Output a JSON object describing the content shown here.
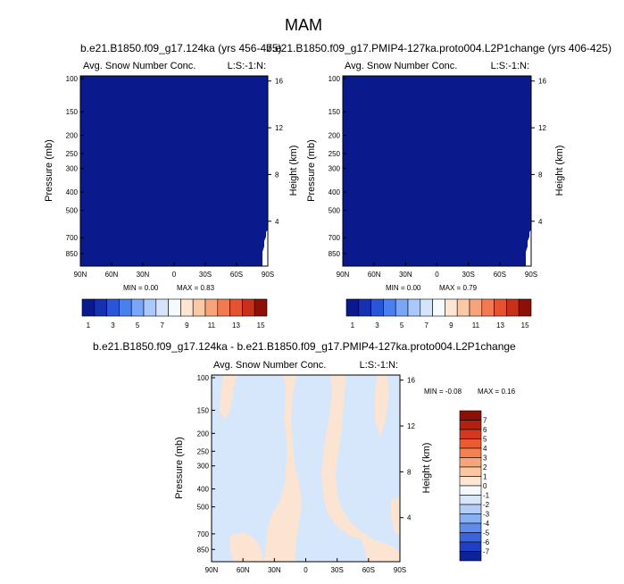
{
  "main_title": "MAM",
  "colors": {
    "deep_blue": "#0a1a8c",
    "light_blue": "#d6e6fb",
    "light_peach": "#fbe4d2"
  },
  "chart_data": [
    {
      "type": "heatmap",
      "title": "b.e21.B1850.f09_g17.124ka (yrs 456-475)",
      "left_label": "Avg. Snow Number Conc.",
      "right_label": "L:S:-1:N:",
      "xlabel": "",
      "ylabel": "Pressure (mb)",
      "ylabel_right": "Height (km)",
      "x_ticks": [
        "90N",
        "60N",
        "30N",
        "0",
        "30S",
        "60S",
        "90S"
      ],
      "y_ticks": [
        "100",
        "150",
        "200",
        "250",
        "300",
        "400",
        "500",
        "700",
        "850"
      ],
      "height_ticks": [
        "16",
        "12",
        "8",
        "4"
      ],
      "min_label": "MIN =  0.00",
      "max_label": "MAX =  0.83",
      "min": 0.0,
      "max": 0.83,
      "colorbar_labels": [
        "1",
        "3",
        "5",
        "7",
        "9",
        "11",
        "13",
        "15"
      ]
    },
    {
      "type": "heatmap",
      "title": "b.e21.B1850.f09_g17.PMIP4-127ka.proto004.L2P1change (yrs 406-425)",
      "left_label": "Avg. Snow Number Conc.",
      "right_label": "L:S:-1:N:",
      "xlabel": "",
      "ylabel": "Pressure (mb)",
      "ylabel_right": "Height (km)",
      "x_ticks": [
        "90N",
        "60N",
        "30N",
        "0",
        "30S",
        "60S",
        "90S"
      ],
      "y_ticks": [
        "100",
        "150",
        "200",
        "250",
        "300",
        "400",
        "500",
        "700",
        "850"
      ],
      "height_ticks": [
        "16",
        "12",
        "8",
        "4"
      ],
      "min_label": "MIN =  0.00",
      "max_label": "MAX =  0.79",
      "min": 0.0,
      "max": 0.79,
      "colorbar_labels": [
        "1",
        "3",
        "5",
        "7",
        "9",
        "11",
        "13",
        "15"
      ]
    },
    {
      "type": "heatmap",
      "title": "b.e21.B1850.f09_g17.124ka - b.e21.B1850.f09_g17.PMIP4-127ka.proto004.L2P1change",
      "left_label": "Avg. Snow Number Conc.",
      "right_label": "L:S:-1:N:",
      "xlabel": "",
      "ylabel": "Pressure (mb)",
      "ylabel_right": "Height (km)",
      "x_ticks": [
        "90N",
        "60N",
        "30N",
        "0",
        "30S",
        "60S",
        "90S"
      ],
      "y_ticks": [
        "100",
        "150",
        "200",
        "250",
        "300",
        "400",
        "500",
        "700",
        "850"
      ],
      "height_ticks": [
        "16",
        "12",
        "8",
        "4"
      ],
      "min_label": "MIN = -0.08",
      "max_label": "MAX =  0.16",
      "min": -0.08,
      "max": 0.16,
      "colorbar_labels": [
        "7",
        "6",
        "5",
        "4",
        "3",
        "2",
        "1",
        "0",
        "-1",
        "-2",
        "-3",
        "-4",
        "-5",
        "-6",
        "-7"
      ]
    }
  ]
}
